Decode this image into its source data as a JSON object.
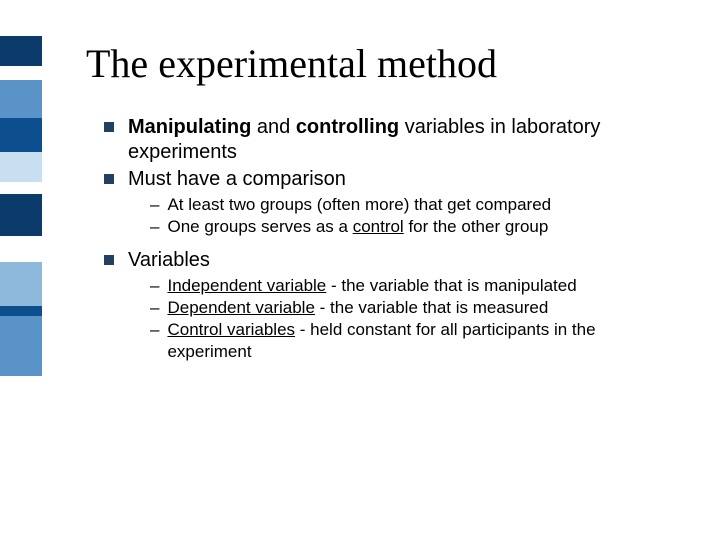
{
  "sidebar": {
    "segments": [
      {
        "color": "#ffffff",
        "height": 36
      },
      {
        "color": "#0a3b6b",
        "height": 30
      },
      {
        "color": "#ffffff",
        "height": 14
      },
      {
        "color": "#5a93c7",
        "height": 38
      },
      {
        "color": "#0d4e8f",
        "height": 34
      },
      {
        "color": "#c8dff2",
        "height": 30
      },
      {
        "color": "#ffffff",
        "height": 12
      },
      {
        "color": "#0a3b6b",
        "height": 42
      },
      {
        "color": "#ffffff",
        "height": 26
      },
      {
        "color": "#8fb8dd",
        "height": 44
      },
      {
        "color": "#0d4e8f",
        "height": 10
      },
      {
        "color": "#5a93c7",
        "height": 60
      },
      {
        "color": "#ffffff",
        "height": 164
      }
    ]
  },
  "title": "The experimental method",
  "bullets": {
    "b1_pre": "Manipulating",
    "b1_mid": " and ",
    "b1_bold2": "controlling",
    "b1_post": " variables in laboratory experiments",
    "b2": "Must have a comparison",
    "b2_s1": "At least two groups (often more) that get compared",
    "b2_s2_pre": "One groups serves as a ",
    "b2_s2_u": "control",
    "b2_s2_post": " for the other group",
    "b3": "Variables",
    "b3_s1_pre": "Independent variable",
    "b3_s1_post": " - the variable that is manipulated",
    "b3_s2_pre": "Dependent variable",
    "b3_s2_post": " - the variable that is measured",
    "b3_s3_pre": "Control variables",
    "b3_s3_post": " - held constant for all participants in the experiment"
  }
}
